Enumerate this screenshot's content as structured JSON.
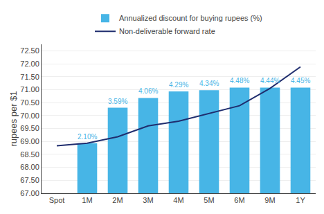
{
  "chart_data": {
    "type": "bar",
    "categories": [
      "Spot",
      "1M",
      "2M",
      "3M",
      "4M",
      "5M",
      "6M",
      "9M",
      "1Y"
    ],
    "series": [
      {
        "name": "Annualized discount for buying rupees (%)",
        "type": "bar",
        "color": "#47b5e6",
        "values": [
          null,
          68.93,
          70.3,
          70.68,
          70.93,
          70.98,
          71.08,
          71.08,
          71.08
        ]
      },
      {
        "name": "Non-deliverable forward rate",
        "type": "line",
        "color": "#1f2d6e",
        "values": [
          68.83,
          68.93,
          69.18,
          69.6,
          69.78,
          70.08,
          70.38,
          71.05,
          71.88
        ]
      }
    ],
    "annotations": [
      {
        "category": "1M",
        "text": "2.10%"
      },
      {
        "category": "2M",
        "text": "3.59%"
      },
      {
        "category": "3M",
        "text": "4.06%"
      },
      {
        "category": "4M",
        "text": "4.29%"
      },
      {
        "category": "5M",
        "text": "4.34%"
      },
      {
        "category": "6M",
        "text": "4.48%"
      },
      {
        "category": "9M",
        "text": "4.44%"
      },
      {
        "category": "1Y",
        "text": "4.45%"
      }
    ],
    "ylabel": "rupees per $1",
    "ylim": [
      67.0,
      72.75
    ],
    "yticks": [
      {
        "value": 67.0,
        "label": "67.00"
      },
      {
        "value": 67.5,
        "label": "67.50"
      },
      {
        "value": 68.0,
        "label": "68.00"
      },
      {
        "value": 68.5,
        "label": "68.50"
      },
      {
        "value": 69.0,
        "label": "69.00"
      },
      {
        "value": 69.5,
        "label": "69.50"
      },
      {
        "value": 70.0,
        "label": "70.00"
      },
      {
        "value": 70.5,
        "label": "70.50"
      },
      {
        "value": 71.0,
        "label": "71.00"
      },
      {
        "value": 71.5,
        "label": "71.50"
      },
      {
        "value": 72.0,
        "label": "72.00"
      },
      {
        "value": 72.5,
        "label": "72.50"
      }
    ],
    "grid": true,
    "legend": "top"
  }
}
